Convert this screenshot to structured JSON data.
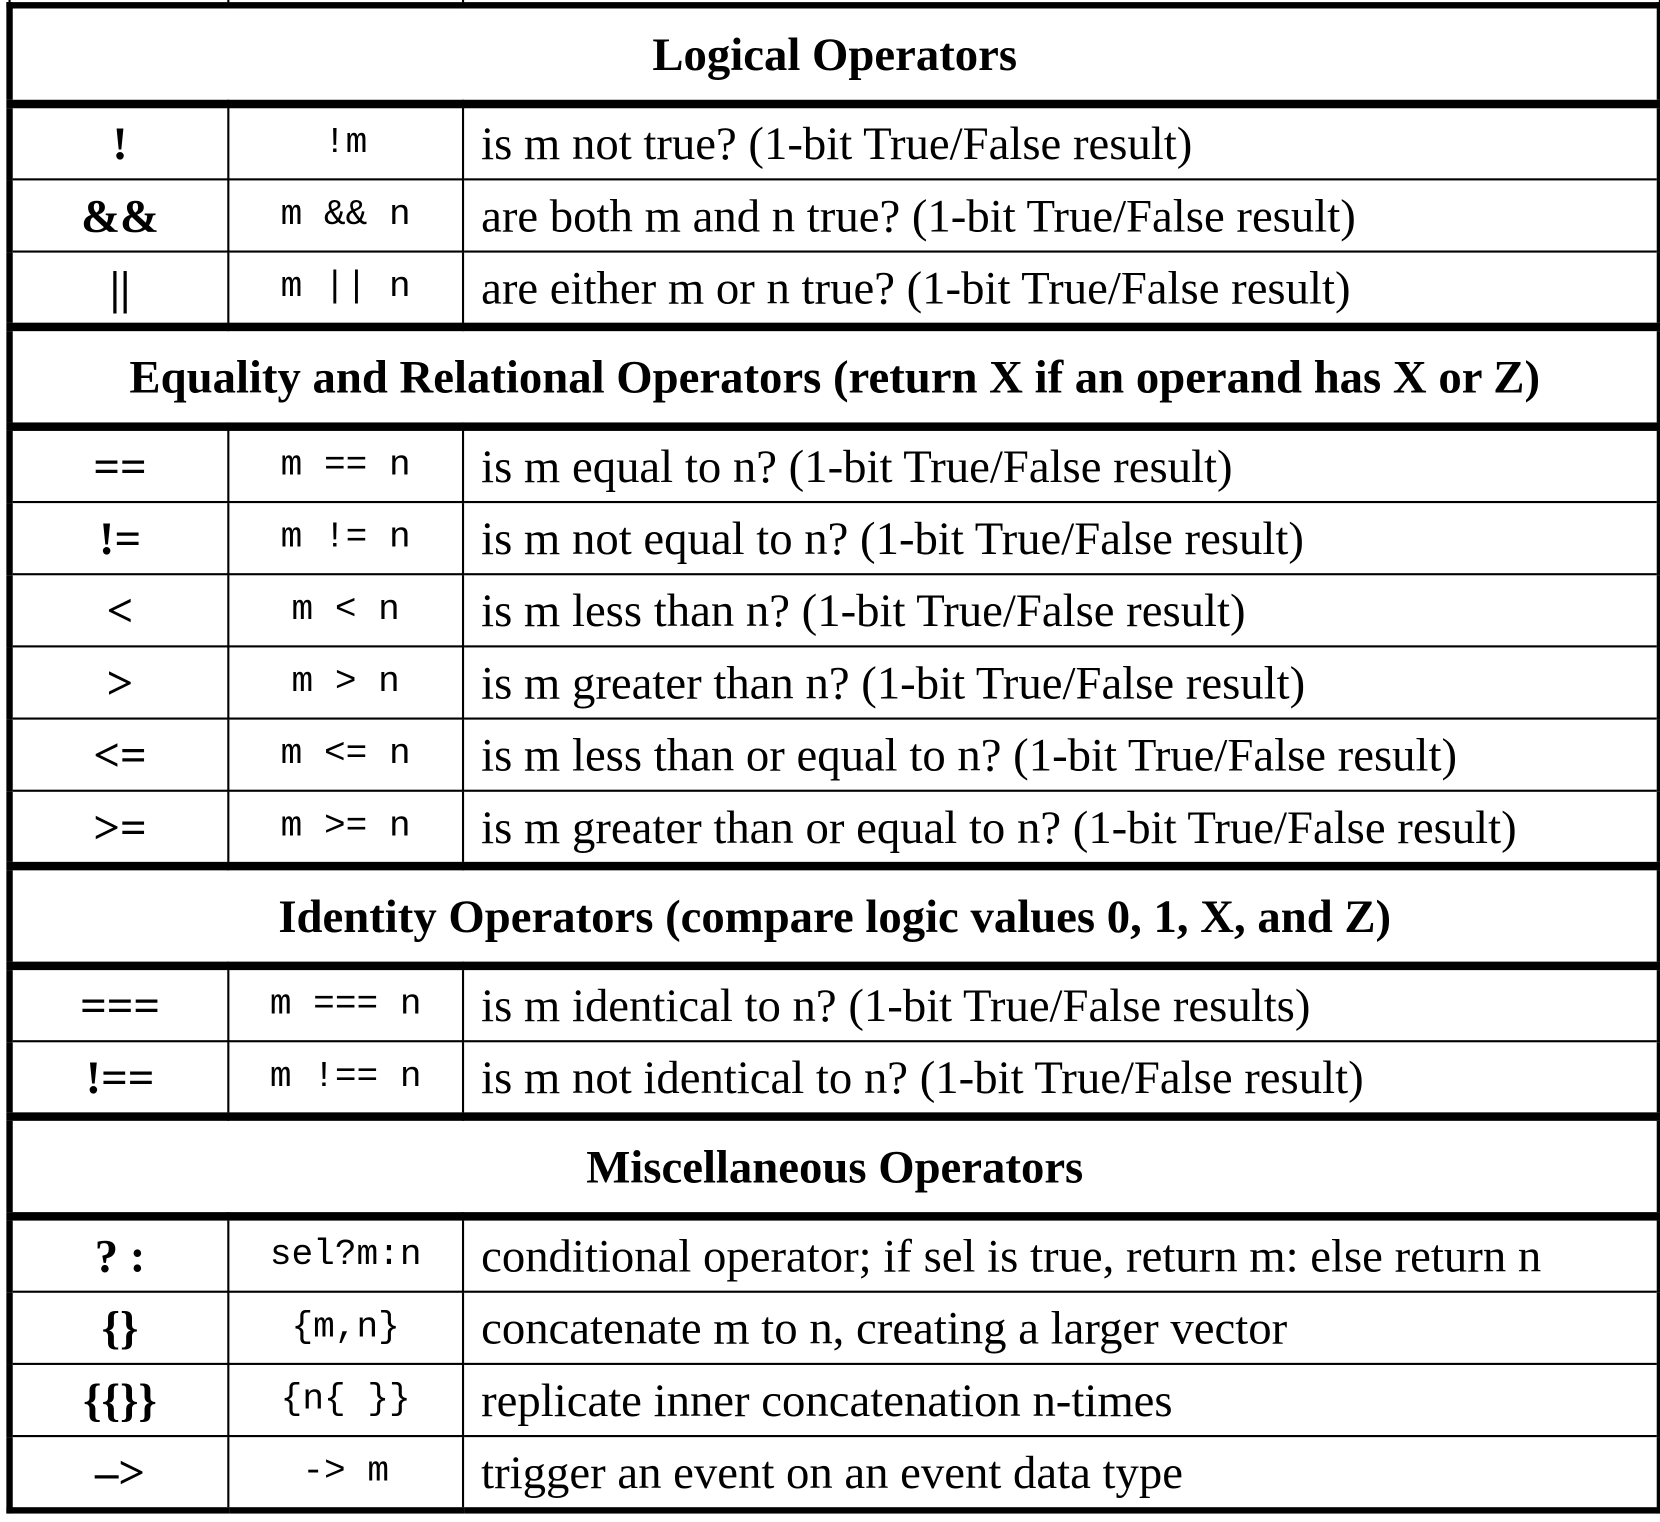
{
  "sections": [
    {
      "title": "Logical Operators",
      "rows": [
        {
          "symbol": "!",
          "example": "!m",
          "description": "is m not true? (1-bit True/False result)"
        },
        {
          "symbol": "&&",
          "example": "m && n",
          "description": "are both m and n true? (1-bit True/False result)"
        },
        {
          "symbol": "||",
          "example": "m || n",
          "description": "are either m or n true? (1-bit True/False result)"
        }
      ]
    },
    {
      "title": "Equality and Relational Operators (return X if an operand has X or Z)",
      "rows": [
        {
          "symbol": "==",
          "example": "m == n",
          "description": "is m equal to n? (1-bit True/False result)"
        },
        {
          "symbol": "!=",
          "example": "m != n",
          "description": "is m not equal to n? (1-bit True/False result)"
        },
        {
          "symbol": "<",
          "example": "m < n",
          "description": "is m less than n? (1-bit True/False result)"
        },
        {
          "symbol": ">",
          "example": "m > n",
          "description": "is m greater than n? (1-bit True/False result)"
        },
        {
          "symbol": "<=",
          "example": "m <= n",
          "description": "is m less than or equal to n? (1-bit True/False result)"
        },
        {
          "symbol": ">=",
          "example": "m >= n",
          "description": "is m greater than or equal to n? (1-bit True/False result)"
        }
      ]
    },
    {
      "title": "Identity Operators (compare logic values 0, 1, X, and Z)",
      "rows": [
        {
          "symbol": "===",
          "example": "m === n",
          "description": "is m identical to n? (1-bit True/False results)"
        },
        {
          "symbol": "!==",
          "example": "m !== n",
          "description": "is m not identical to n? (1-bit True/False result)"
        }
      ]
    },
    {
      "title": "Miscellaneous Operators",
      "rows": [
        {
          "symbol": "? :",
          "example": "sel?m:n",
          "description": "conditional operator; if sel is true, return m: else return n"
        },
        {
          "symbol": "{}",
          "example": "{m,n}",
          "description": "concatenate m to n, creating a larger vector"
        },
        {
          "symbol": "{{}}",
          "example": "{n{ }}",
          "description": "replicate inner concatenation n-times"
        },
        {
          "symbol": "–>",
          "example": "-> m",
          "description": "trigger an event on an event data type"
        }
      ]
    }
  ]
}
